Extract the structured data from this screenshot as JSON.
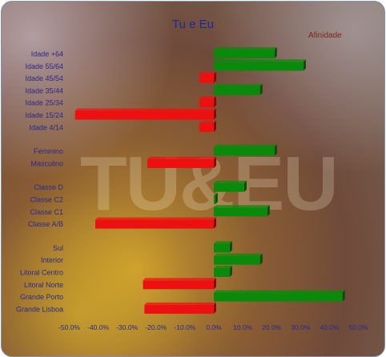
{
  "chart_data": {
    "type": "bar",
    "orientation": "horizontal",
    "title": "Tu e Eu",
    "legend": "Afinidade",
    "legend_position": "top-right",
    "watermark": "TU&EU",
    "xlim": [
      -50,
      50
    ],
    "xticks": [
      -50,
      -40,
      -30,
      -20,
      -10,
      0,
      10,
      20,
      30,
      40,
      50
    ],
    "xtick_labels": [
      "-50.0%",
      "-40.0%",
      "-30.0%",
      "-20.0%",
      "-10.0%",
      "0.0%",
      "10.0%",
      "20.0%",
      "30.0%",
      "40.0%",
      "50.0%"
    ],
    "positive_color": "#0a8a0a",
    "negative_color": "#ee1010",
    "groups": [
      {
        "categories": [
          "Idade +64",
          "Idade 55/64",
          "Idade 45/54",
          "Idade 35/44",
          "Idade 25/34",
          "Idade 15/24",
          "Idade 4/14"
        ],
        "values": [
          21,
          31,
          -5,
          16,
          -5,
          -48,
          -5
        ]
      },
      {
        "categories": [
          "Feminino",
          "Masculino"
        ],
        "values": [
          21,
          -23
        ]
      },
      {
        "categories": [
          "Classe D",
          "Classe C2",
          "Classe C1",
          "Classe A/B"
        ],
        "values": [
          10.5,
          0.5,
          18.5,
          -41
        ]
      },
      {
        "categories": [
          "Sul",
          "Interior",
          "Litoral Centro",
          "Litoral Norte",
          "Grande Porto",
          "Grande Lisboa"
        ],
        "values": [
          5.5,
          16,
          5.5,
          -24.5,
          44.5,
          -24
        ]
      }
    ]
  }
}
